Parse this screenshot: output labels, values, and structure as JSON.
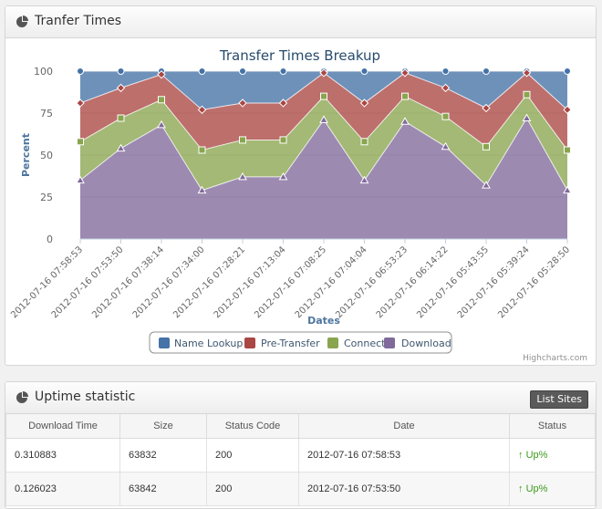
{
  "panel1": {
    "title": "Tranfer Times"
  },
  "panel2": {
    "title": "Uptime statistic",
    "list_sites_label": "List Sites"
  },
  "credit": "Highcharts.com",
  "colors": {
    "name_lookup": "#4572A7",
    "pre_transfer": "#AA4643",
    "connect": "#89A54E",
    "download": "#80699B"
  },
  "chart_data": {
    "type": "area",
    "stacking": "cumulative",
    "title": "Transfer Times Breakup",
    "xlabel": "Dates",
    "ylabel": "Percent",
    "ylim": [
      0,
      100
    ],
    "yticks": [
      0,
      25,
      50,
      75,
      100
    ],
    "legend_position": "bottom-center",
    "categories": [
      "2012-07-16 07:58:53",
      "2012-07-16 07:53:50",
      "2012-07-16 07:38:14",
      "2012-07-16 07:34:00",
      "2012-07-16 07:28:21",
      "2012-07-16 07:13:04",
      "2012-07-16 07:08:25",
      "2012-07-16 07:04:04",
      "2012-07-16 06:53:23",
      "2012-07-16 06:14:22",
      "2012-07-16 05:43:55",
      "2012-07-16 05:39:24",
      "2012-07-16 05:28:50"
    ],
    "series": [
      {
        "name": "Name Lookup",
        "cumulative": [
          100,
          100,
          100,
          100,
          100,
          100,
          100,
          100,
          100,
          100,
          100,
          100,
          100
        ]
      },
      {
        "name": "Pre-Transfer",
        "cumulative": [
          81,
          90,
          98,
          77,
          81,
          81,
          99,
          81,
          99,
          90,
          78,
          99,
          77
        ]
      },
      {
        "name": "Connect",
        "cumulative": [
          58,
          72,
          83,
          53,
          59,
          59,
          85,
          58,
          85,
          73,
          55,
          86,
          53
        ]
      },
      {
        "name": "Download",
        "cumulative": [
          35,
          54,
          68,
          29,
          37,
          37,
          71,
          35,
          70,
          55,
          32,
          72,
          29
        ]
      }
    ]
  },
  "table": {
    "headers": [
      "Download Time",
      "Size",
      "Status Code",
      "Date",
      "Status"
    ],
    "rows": [
      {
        "download_time": "0.310883",
        "size": "63832",
        "status_code": "200",
        "date": "2012-07-16 07:58:53",
        "status": "Up%"
      },
      {
        "download_time": "0.126023",
        "size": "63842",
        "status_code": "200",
        "date": "2012-07-16 07:53:50",
        "status": "Up%"
      }
    ]
  }
}
